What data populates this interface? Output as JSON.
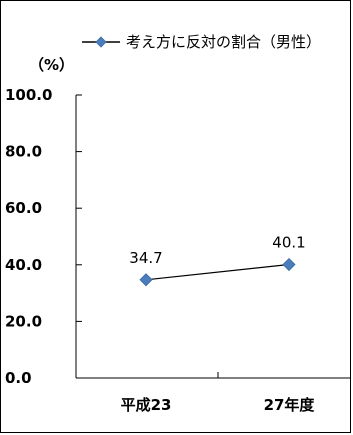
{
  "chart_data": {
    "type": "line",
    "categories": [
      "平成23",
      "27年度"
    ],
    "series": [
      {
        "name": "考え方に反対の割合（男性）",
        "values": [
          34.7,
          40.1
        ],
        "color": "#4a7ebb"
      }
    ],
    "data_labels": [
      "34.7",
      "40.1"
    ],
    "y_ticks": [
      "100.0",
      "80.0",
      "60.0",
      "40.0",
      "20.0",
      "0.0"
    ],
    "ylim": [
      0,
      100
    ],
    "unit_label": "（%）",
    "legend_position": "top",
    "grid": false
  }
}
